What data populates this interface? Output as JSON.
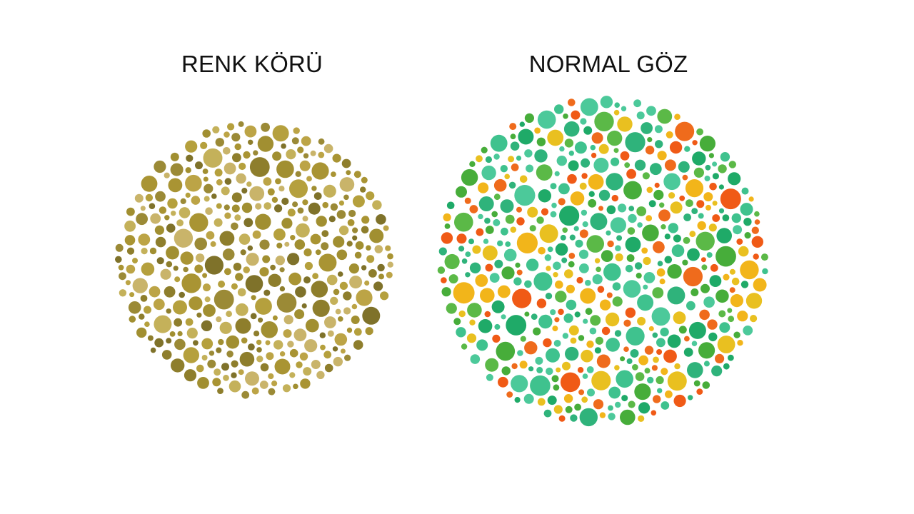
{
  "panels": [
    {
      "title": "RENK KÖRÜ",
      "palette": [
        "#b5a03d",
        "#a18f31",
        "#c4b15a",
        "#8e7e2c",
        "#bca446",
        "#9b8a36",
        "#c9b46a",
        "#a99433",
        "#7f722a"
      ]
    },
    {
      "title": "NORMAL GÖZ",
      "palette": [
        "#f05a16",
        "#ef6b1c",
        "#f2b51a",
        "#e9c020",
        "#5bb947",
        "#47ad3a",
        "#2fb37b",
        "#3fc28e",
        "#1faa68",
        "#4cc99a"
      ]
    }
  ]
}
